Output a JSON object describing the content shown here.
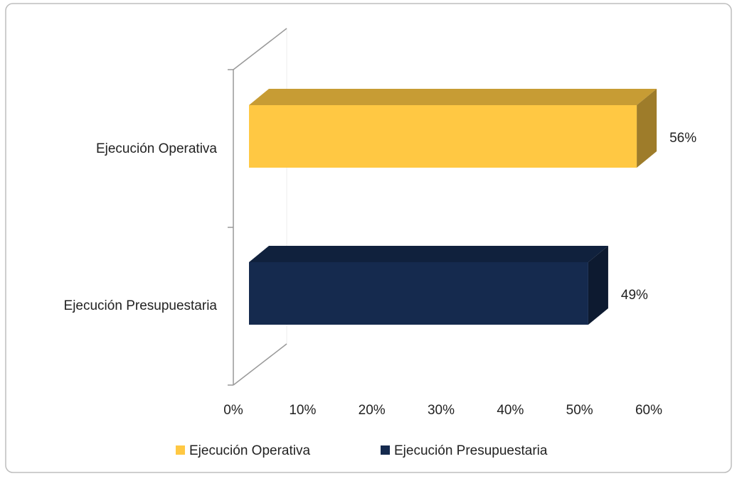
{
  "chart_data": {
    "type": "bar3d_horizontal",
    "categories": [
      "Ejecución Operativa",
      "Ejecución Presupuestaria"
    ],
    "series": [
      {
        "name": "Ejecución Operativa",
        "color": "#ffc843",
        "values": [
          56,
          null
        ],
        "value_labels": [
          "56%",
          null
        ]
      },
      {
        "name": "Ejecución Presupuestaria",
        "color": "#152a4e",
        "values": [
          null,
          49
        ],
        "value_labels": [
          null,
          "49%"
        ]
      }
    ],
    "xlim": [
      0,
      60
    ],
    "xticks": [
      {
        "value": 0,
        "label": "0%"
      },
      {
        "value": 10,
        "label": "10%"
      },
      {
        "value": 20,
        "label": "20%"
      },
      {
        "value": 30,
        "label": "30%"
      },
      {
        "value": 40,
        "label": "40%"
      },
      {
        "value": 50,
        "label": "50%"
      },
      {
        "value": 60,
        "label": "60%"
      }
    ],
    "legend": "bottom"
  }
}
